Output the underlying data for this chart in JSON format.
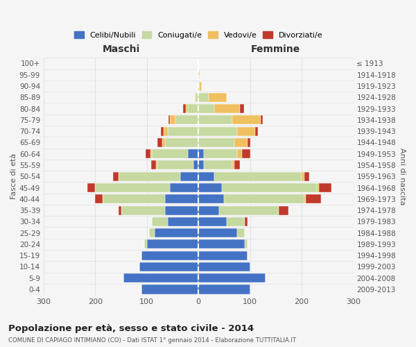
{
  "age_groups": [
    "0-4",
    "5-9",
    "10-14",
    "15-19",
    "20-24",
    "25-29",
    "30-34",
    "35-39",
    "40-44",
    "45-49",
    "50-54",
    "55-59",
    "60-64",
    "65-69",
    "70-74",
    "75-79",
    "80-84",
    "85-89",
    "90-94",
    "95-99",
    "100+"
  ],
  "birth_years": [
    "2009-2013",
    "2004-2008",
    "1999-2003",
    "1994-1998",
    "1989-1993",
    "1984-1988",
    "1979-1983",
    "1974-1978",
    "1969-1973",
    "1964-1968",
    "1959-1963",
    "1954-1958",
    "1949-1953",
    "1944-1948",
    "1939-1943",
    "1934-1938",
    "1929-1933",
    "1924-1928",
    "1919-1923",
    "1914-1918",
    "≤ 1913"
  ],
  "males": {
    "celibi": [
      110,
      145,
      115,
      110,
      100,
      85,
      60,
      65,
      65,
      55,
      35,
      10,
      20,
      0,
      0,
      0,
      0,
      0,
      0,
      0,
      0
    ],
    "coniugati": [
      0,
      0,
      0,
      0,
      5,
      10,
      30,
      85,
      120,
      145,
      120,
      70,
      70,
      65,
      60,
      45,
      20,
      5,
      2,
      0,
      0
    ],
    "vedovi": [
      0,
      0,
      0,
      0,
      0,
      0,
      0,
      0,
      0,
      0,
      0,
      2,
      3,
      5,
      8,
      10,
      5,
      2,
      0,
      0,
      0
    ],
    "divorziati": [
      0,
      0,
      0,
      0,
      0,
      0,
      0,
      5,
      15,
      15,
      10,
      10,
      10,
      10,
      5,
      3,
      5,
      0,
      0,
      0,
      0
    ]
  },
  "females": {
    "nubili": [
      100,
      130,
      100,
      95,
      90,
      75,
      55,
      40,
      50,
      45,
      30,
      10,
      10,
      0,
      0,
      0,
      0,
      0,
      0,
      0,
      0
    ],
    "coniugate": [
      0,
      0,
      0,
      0,
      5,
      15,
      35,
      115,
      155,
      185,
      170,
      55,
      65,
      70,
      75,
      65,
      30,
      20,
      2,
      0,
      0
    ],
    "vedove": [
      0,
      0,
      0,
      0,
      0,
      0,
      0,
      0,
      3,
      3,
      5,
      5,
      10,
      25,
      35,
      55,
      50,
      35,
      5,
      2,
      0
    ],
    "divorziate": [
      0,
      0,
      0,
      0,
      0,
      0,
      5,
      20,
      30,
      25,
      10,
      10,
      15,
      5,
      5,
      5,
      8,
      0,
      0,
      0,
      0
    ]
  },
  "colors": {
    "celibi": "#4472C4",
    "coniugati": "#c5d9a0",
    "vedovi": "#f0c060",
    "divorziati": "#c0392b"
  },
  "title": "Popolazione per età, sesso e stato civile - 2014",
  "subtitle": "COMUNE DI CAPIAGO INTIMIANO (CO) - Dati ISTAT 1° gennaio 2014 - Elaborazione TUTTITALIA.IT",
  "xlabel_left": "Maschi",
  "xlabel_right": "Femmine",
  "ylabel_left": "Fasce di età",
  "ylabel_right": "Anni di nascita",
  "xlim": 300,
  "bg_color": "#f5f5f5",
  "grid_color": "#cccccc"
}
